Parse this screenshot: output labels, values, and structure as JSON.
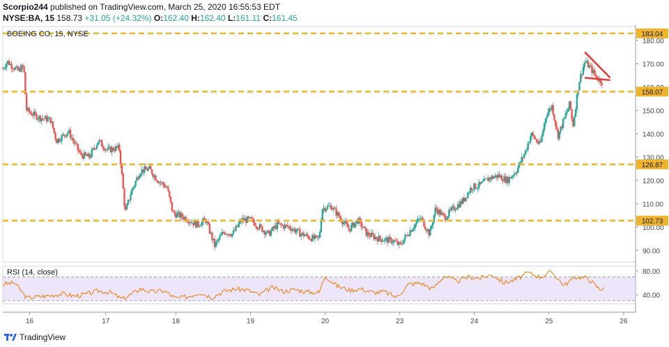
{
  "header": {
    "author": "Scorpio244",
    "published": "published on TradingView.com, March 25, 2020 16:55:53 EDT",
    "symbol": "NYSE:BA, 15",
    "price": "158.73",
    "change": "+31.05 (+24.32%)",
    "o_label": "O:",
    "o_value": "162.40",
    "h_label": "H:",
    "h_value": "162.40",
    "l_label": "L:",
    "l_value": "161.11",
    "c_label": "C:",
    "c_value": "161.45"
  },
  "footer": {
    "brand": "TradingView",
    "logo_icon": "tradingview-logo-icon"
  },
  "colors": {
    "up": "#26a69a",
    "down": "#ef5350",
    "level": "#f0b429",
    "rsi": "#f57c00",
    "rsi_band": "#e1d4f5",
    "trend": "#e53935",
    "text": "#131722"
  },
  "chart_data": [
    {
      "type": "candlestick",
      "title": "BOEING CO, 15, NYSE",
      "ylim": [
        85,
        186
      ],
      "y_ticks": [
        90,
        100,
        110,
        120,
        130,
        140,
        150,
        160,
        170,
        180
      ],
      "x_ticks": [
        {
          "label": "16",
          "x": 0.9
        },
        {
          "label": "17",
          "x": 3.45
        },
        {
          "label": "18",
          "x": 5.8
        },
        {
          "label": "19",
          "x": 8.3
        },
        {
          "label": "20",
          "x": 10.8
        },
        {
          "label": "23",
          "x": 13.3
        },
        {
          "label": "24",
          "x": 15.8
        },
        {
          "label": "25",
          "x": 18.3
        },
        {
          "label": "26",
          "x": 20.8
        }
      ],
      "x_range": [
        0,
        21.2
      ],
      "price_path": [
        [
          0.0,
          168
        ],
        [
          0.15,
          171
        ],
        [
          0.5,
          167
        ],
        [
          0.7,
          169
        ],
        [
          0.75,
          158
        ],
        [
          0.8,
          150
        ],
        [
          1.2,
          147
        ],
        [
          1.6,
          146
        ],
        [
          1.8,
          137
        ],
        [
          2.2,
          141
        ],
        [
          2.6,
          131
        ],
        [
          2.9,
          130
        ],
        [
          3.2,
          137
        ],
        [
          3.5,
          133
        ],
        [
          3.9,
          134
        ],
        [
          4.0,
          121
        ],
        [
          4.1,
          106
        ],
        [
          4.3,
          115
        ],
        [
          4.6,
          124
        ],
        [
          4.9,
          125
        ],
        [
          5.2,
          120
        ],
        [
          5.5,
          117
        ],
        [
          5.7,
          106
        ],
        [
          6.1,
          104
        ],
        [
          6.5,
          101
        ],
        [
          6.8,
          103
        ],
        [
          7.1,
          92
        ],
        [
          7.4,
          98
        ],
        [
          7.7,
          97
        ],
        [
          8.0,
          103
        ],
        [
          8.3,
          103
        ],
        [
          8.6,
          100
        ],
        [
          8.9,
          97
        ],
        [
          9.2,
          101
        ],
        [
          9.6,
          100
        ],
        [
          10.0,
          97
        ],
        [
          10.4,
          95
        ],
        [
          10.6,
          95
        ],
        [
          10.7,
          108
        ],
        [
          11.0,
          109
        ],
        [
          11.3,
          104
        ],
        [
          11.6,
          99
        ],
        [
          11.9,
          103
        ],
        [
          12.2,
          97
        ],
        [
          12.6,
          95
        ],
        [
          13.1,
          94
        ],
        [
          13.3,
          92
        ],
        [
          13.5,
          96
        ],
        [
          13.8,
          101
        ],
        [
          14.0,
          104
        ],
        [
          14.3,
          97
        ],
        [
          14.5,
          108
        ],
        [
          14.8,
          104
        ],
        [
          15.1,
          108
        ],
        [
          15.4,
          111
        ],
        [
          15.7,
          117
        ],
        [
          16.0,
          118
        ],
        [
          16.3,
          121
        ],
        [
          16.6,
          122
        ],
        [
          16.9,
          120
        ],
        [
          17.2,
          124
        ],
        [
          17.5,
          132
        ],
        [
          17.7,
          140
        ],
        [
          18.0,
          135
        ],
        [
          18.2,
          148
        ],
        [
          18.4,
          152
        ],
        [
          18.6,
          139
        ],
        [
          18.8,
          146
        ],
        [
          19.0,
          153
        ],
        [
          19.1,
          143
        ],
        [
          19.3,
          162
        ],
        [
          19.5,
          171
        ],
        [
          19.7,
          168
        ],
        [
          19.9,
          164
        ],
        [
          20.1,
          162
        ]
      ],
      "price_levels": [
        {
          "label": "183.04",
          "value": 183.04
        },
        {
          "label": "158.07",
          "value": 158.07
        },
        {
          "label": "126.87",
          "value": 126.87
        },
        {
          "label": "102.73",
          "value": 102.73
        }
      ],
      "trendlines": [
        {
          "x1": 19.5,
          "y1": 175,
          "x2": 20.35,
          "y2": 164
        },
        {
          "x1": 19.5,
          "y1": 164,
          "x2": 20.35,
          "y2": 163
        }
      ]
    },
    {
      "type": "line",
      "title": "RSI (14, close)",
      "ylim": [
        25,
        88
      ],
      "y_ticks": [
        40,
        80
      ],
      "band": [
        30,
        70
      ],
      "x_range": [
        0,
        21.2
      ],
      "values": [
        [
          0.0,
          58
        ],
        [
          0.4,
          60
        ],
        [
          0.8,
          35
        ],
        [
          1.2,
          37
        ],
        [
          1.6,
          39
        ],
        [
          2.0,
          42
        ],
        [
          2.4,
          38
        ],
        [
          2.8,
          41
        ],
        [
          3.2,
          47
        ],
        [
          3.6,
          44
        ],
        [
          4.0,
          33
        ],
        [
          4.2,
          38
        ],
        [
          4.6,
          50
        ],
        [
          5.0,
          45
        ],
        [
          5.4,
          47
        ],
        [
          5.8,
          34
        ],
        [
          6.2,
          37
        ],
        [
          6.6,
          44
        ],
        [
          7.0,
          36
        ],
        [
          7.4,
          46
        ],
        [
          7.8,
          50
        ],
        [
          8.2,
          48
        ],
        [
          8.6,
          40
        ],
        [
          9.0,
          52
        ],
        [
          9.4,
          46
        ],
        [
          9.8,
          49
        ],
        [
          10.2,
          45
        ],
        [
          10.6,
          44
        ],
        [
          10.8,
          72
        ],
        [
          11.2,
          55
        ],
        [
          11.6,
          48
        ],
        [
          12.0,
          50
        ],
        [
          12.4,
          44
        ],
        [
          12.8,
          45
        ],
        [
          13.2,
          36
        ],
        [
          13.6,
          58
        ],
        [
          14.0,
          60
        ],
        [
          14.4,
          50
        ],
        [
          14.8,
          72
        ],
        [
          15.2,
          62
        ],
        [
          15.6,
          70
        ],
        [
          16.0,
          68
        ],
        [
          16.4,
          74
        ],
        [
          16.8,
          60
        ],
        [
          17.2,
          66
        ],
        [
          17.6,
          77
        ],
        [
          18.0,
          70
        ],
        [
          18.4,
          78
        ],
        [
          18.8,
          56
        ],
        [
          19.2,
          70
        ],
        [
          19.6,
          68
        ],
        [
          20.0,
          49
        ],
        [
          20.2,
          55
        ]
      ]
    }
  ]
}
